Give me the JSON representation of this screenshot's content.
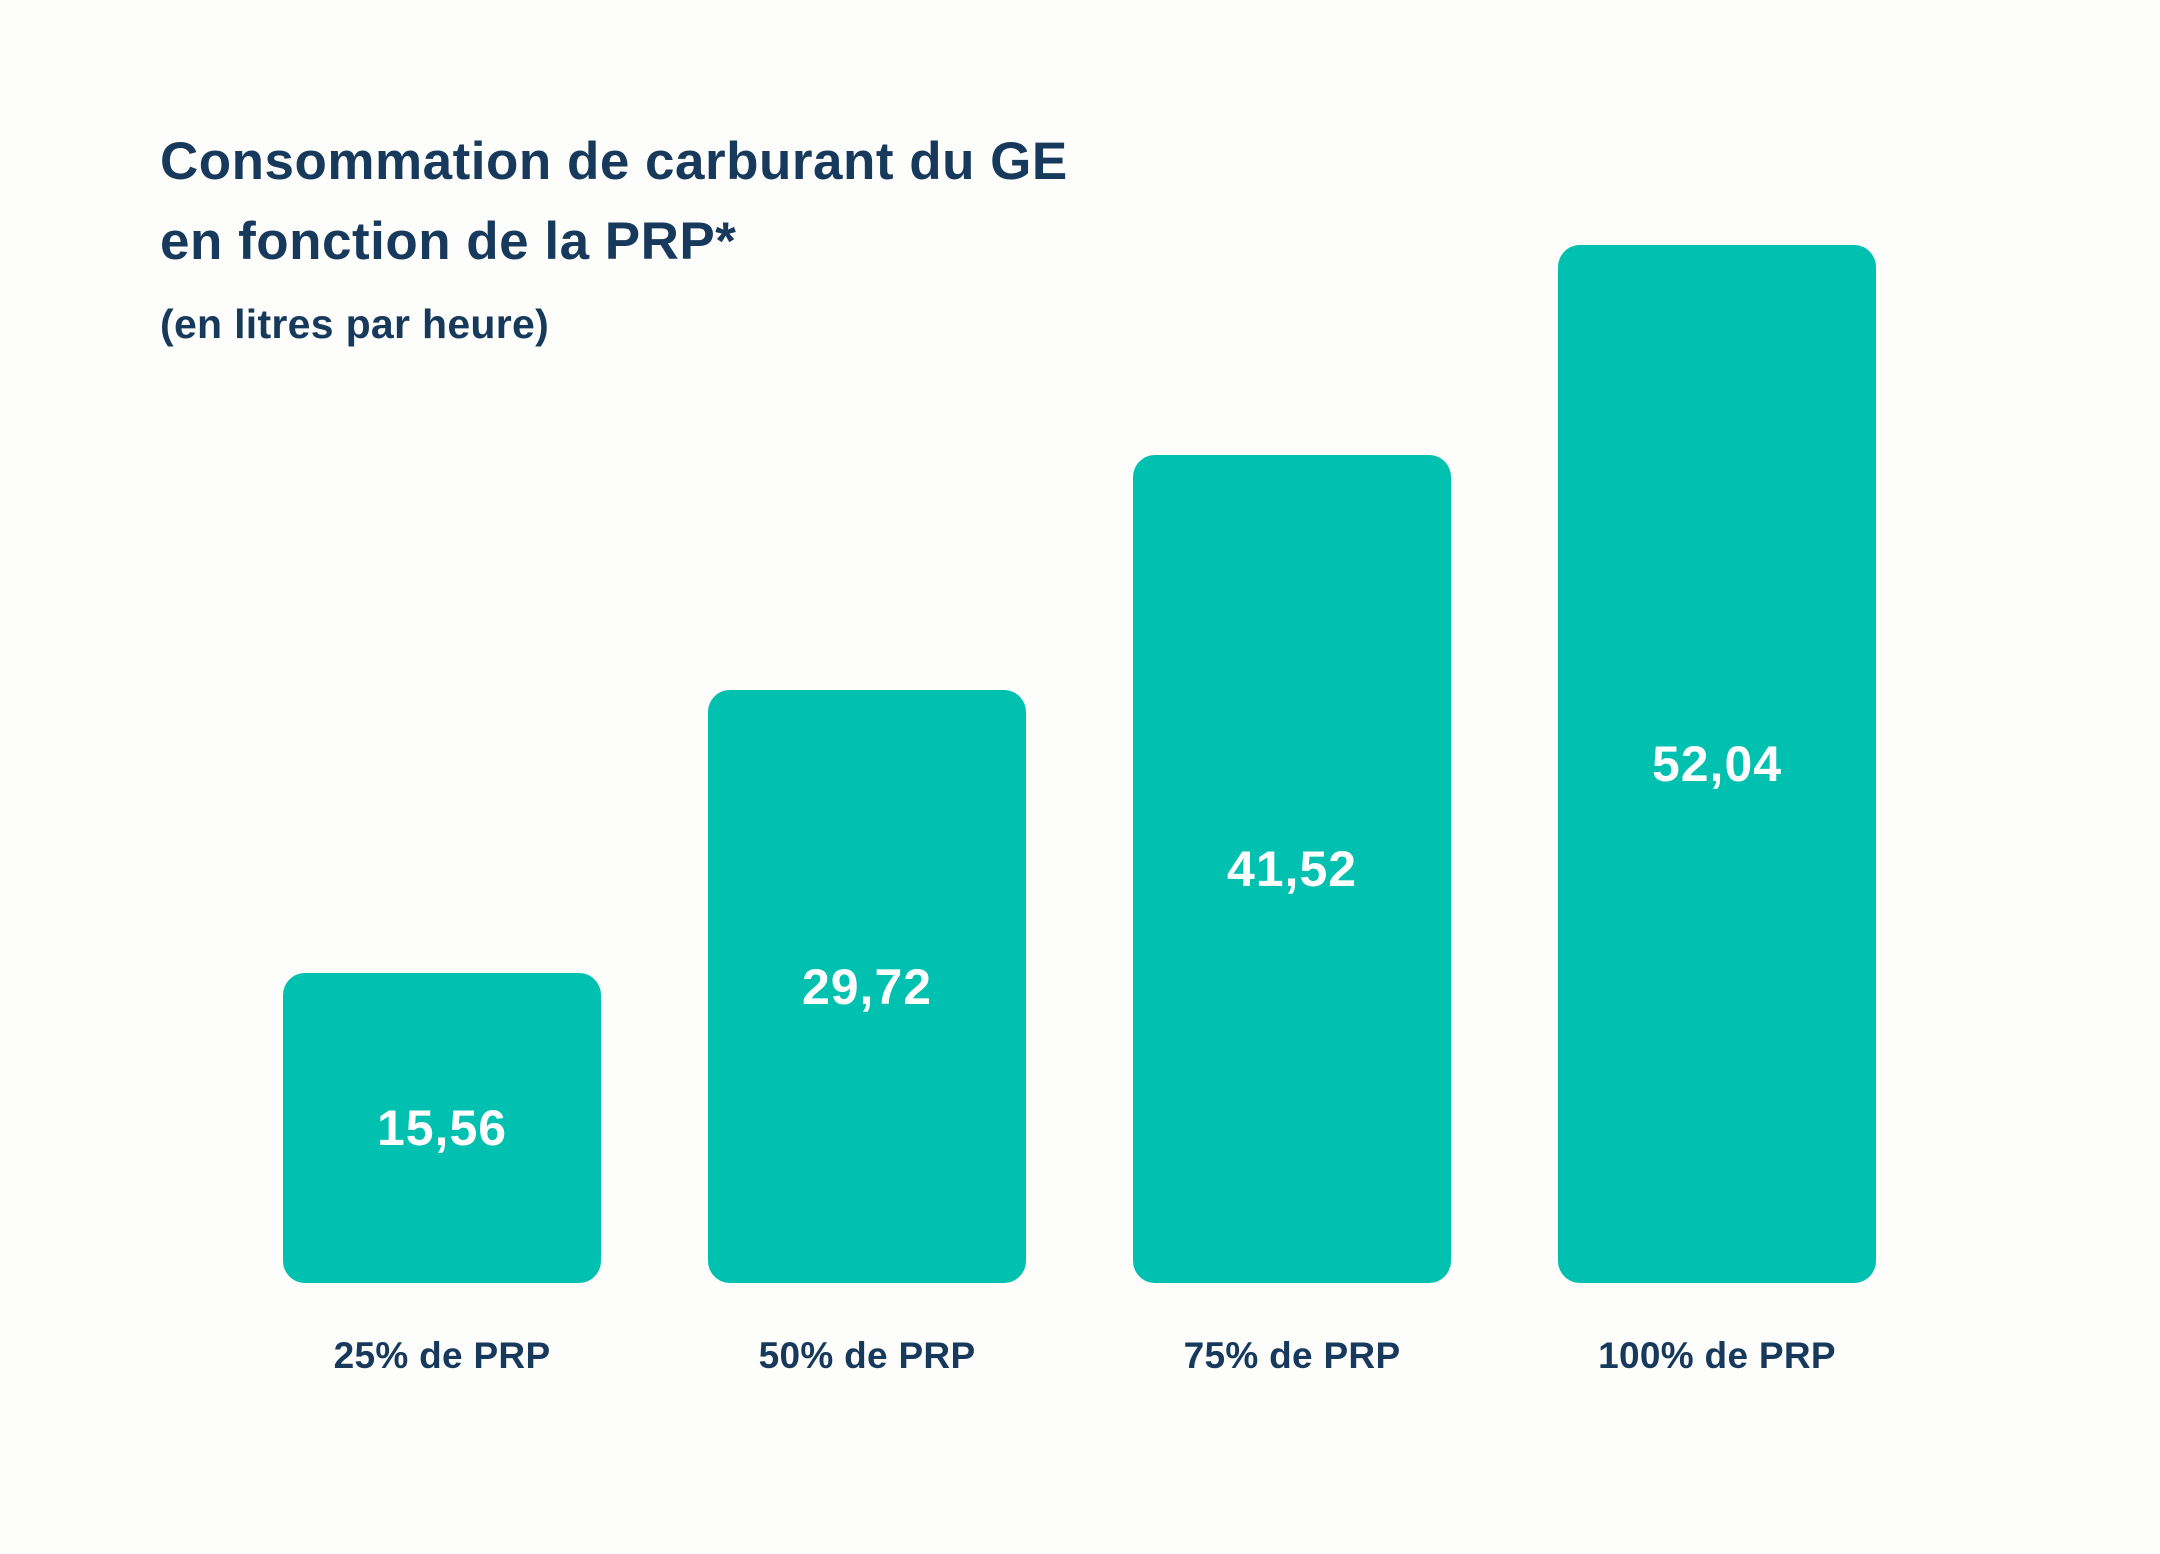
{
  "title": {
    "line1": "Consommation de carburant du GE",
    "line2": "en fonction de la PRP*",
    "subtitle": "(en litres par heure)"
  },
  "colors": {
    "background": "#FDFDFC",
    "bar": "#00C0B0",
    "title_text": "#17395C",
    "value_text": "#FFFFFF"
  },
  "chart_data": {
    "type": "bar",
    "title": "Consommation de carburant du GE en fonction de la PRP*",
    "subtitle": "(en litres par heure)",
    "unit": "litres par heure",
    "categories": [
      "25% de PRP",
      "50% de PRP",
      "75% de PRP",
      "100% de PRP"
    ],
    "values": [
      15.56,
      29.72,
      41.52,
      52.04
    ],
    "value_labels": [
      "15,56",
      "29,72",
      "41,52",
      "52,04"
    ],
    "ylim": [
      0,
      52.04
    ],
    "bar_color": "#00C0B0",
    "grid": false,
    "legend": false,
    "value_label_position": "centered-inside-bar",
    "orientation": "vertical"
  }
}
